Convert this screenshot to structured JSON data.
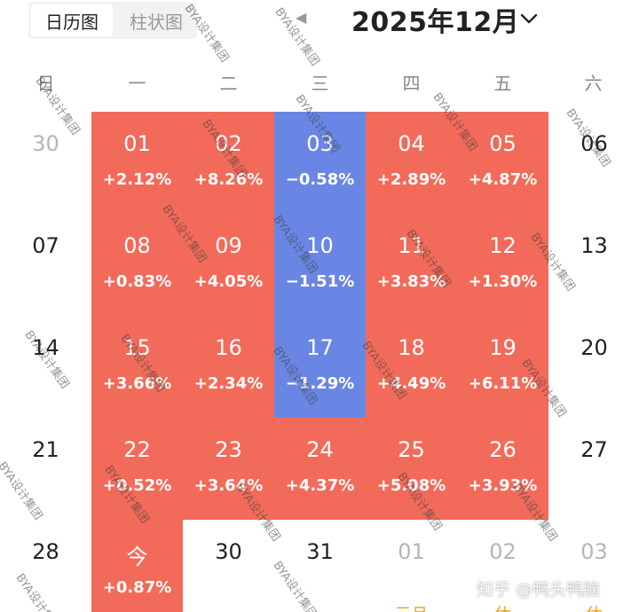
{
  "header": {
    "tabs": [
      {
        "label": "日历图",
        "active": true
      },
      {
        "label": "柱状图",
        "active": false
      }
    ],
    "month_title": "2025年12月",
    "prev_icon": "triangle-left-icon",
    "dropdown_icon": "chevron-down-icon"
  },
  "weekdays": [
    "日",
    "一",
    "二",
    "三",
    "四",
    "五",
    "六"
  ],
  "colors": {
    "up": "#f26b5a",
    "down": "#6a86e4",
    "holiday_text": "#e6a817"
  },
  "weeks": [
    [
      {
        "day": "30",
        "kind": "muted"
      },
      {
        "day": "01",
        "change": "+2.12%",
        "kind": "up"
      },
      {
        "day": "02",
        "change": "+8.26%",
        "kind": "up"
      },
      {
        "day": "03",
        "change": "−0.58%",
        "kind": "down"
      },
      {
        "day": "04",
        "change": "+2.89%",
        "kind": "up"
      },
      {
        "day": "05",
        "change": "+4.87%",
        "kind": "up"
      },
      {
        "day": "06",
        "kind": "plain"
      }
    ],
    [
      {
        "day": "07",
        "kind": "plain"
      },
      {
        "day": "08",
        "change": "+0.83%",
        "kind": "up"
      },
      {
        "day": "09",
        "change": "+4.05%",
        "kind": "up"
      },
      {
        "day": "10",
        "change": "−1.51%",
        "kind": "down"
      },
      {
        "day": "11",
        "change": "+3.83%",
        "kind": "up"
      },
      {
        "day": "12",
        "change": "+1.30%",
        "kind": "up"
      },
      {
        "day": "13",
        "kind": "plain"
      }
    ],
    [
      {
        "day": "14",
        "kind": "plain"
      },
      {
        "day": "15",
        "change": "+3.66%",
        "kind": "up"
      },
      {
        "day": "16",
        "change": "+2.34%",
        "kind": "up"
      },
      {
        "day": "17",
        "change": "−1.29%",
        "kind": "down"
      },
      {
        "day": "18",
        "change": "+4.49%",
        "kind": "up"
      },
      {
        "day": "19",
        "change": "+6.11%",
        "kind": "up"
      },
      {
        "day": "20",
        "kind": "plain"
      }
    ],
    [
      {
        "day": "21",
        "kind": "plain"
      },
      {
        "day": "22",
        "change": "+0.52%",
        "kind": "up"
      },
      {
        "day": "23",
        "change": "+3.64%",
        "kind": "up"
      },
      {
        "day": "24",
        "change": "+4.37%",
        "kind": "up"
      },
      {
        "day": "25",
        "change": "+5.08%",
        "kind": "up"
      },
      {
        "day": "26",
        "change": "+3.93%",
        "kind": "up"
      },
      {
        "day": "27",
        "kind": "plain"
      }
    ],
    [
      {
        "day": "28",
        "kind": "plain"
      },
      {
        "day": "今",
        "change": "+0.87%",
        "kind": "up"
      },
      {
        "day": "30",
        "kind": "plain"
      },
      {
        "day": "31",
        "kind": "plain"
      },
      {
        "day": "01",
        "note": "元旦",
        "kind": "muted"
      },
      {
        "day": "02",
        "note": "休",
        "kind": "muted"
      },
      {
        "day": "03",
        "note": "休",
        "kind": "muted"
      }
    ]
  ],
  "watermark_text": "BYA设计集团",
  "credit": "知乎 @鸭头鸭脑"
}
